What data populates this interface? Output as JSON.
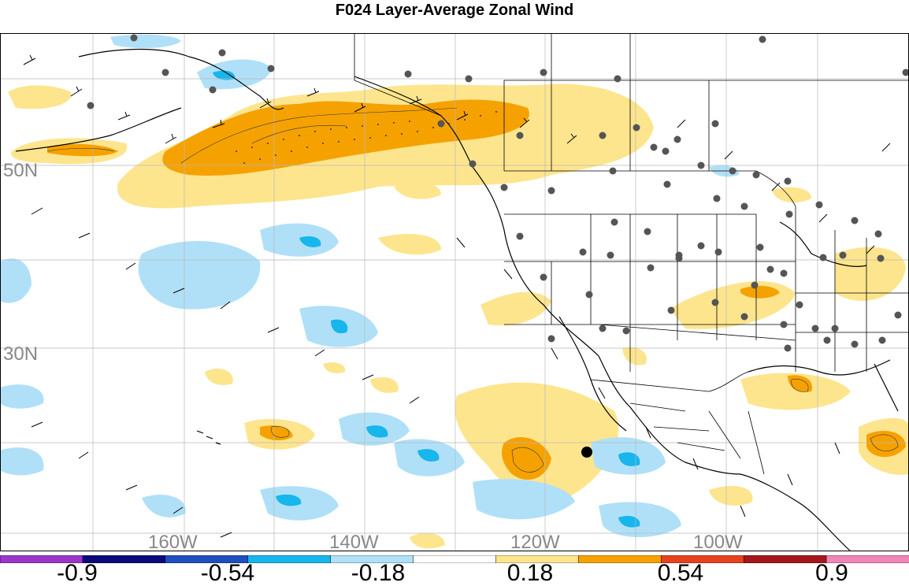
{
  "title": "F024 Layer-Average Zonal Wind",
  "map": {
    "lat_labels": [
      "50N",
      "30N"
    ],
    "lon_labels": [
      "160W",
      "140W",
      "120W",
      "100W"
    ],
    "label_color": "#888888",
    "grid_color": "#b0b0b0"
  },
  "colorbar": {
    "colors": [
      "#9b36c9",
      "#0a0a7a",
      "#1f4fbf",
      "#17b6ec",
      "#b0e0f8",
      "#ffffff",
      "#fde58e",
      "#f5a200",
      "#e6431c",
      "#a5161d",
      "#ef86b8"
    ],
    "tick_labels": [
      "-0.9",
      "-0.54",
      "-0.18",
      "0.18",
      "0.54",
      "0.9"
    ]
  },
  "fill_colors": {
    "pos_light": "#fde58e",
    "pos_med": "#f5a200",
    "pos_strong": "#e6431c",
    "neg_light": "#b0e0f8",
    "neg_med": "#17b6ec"
  }
}
